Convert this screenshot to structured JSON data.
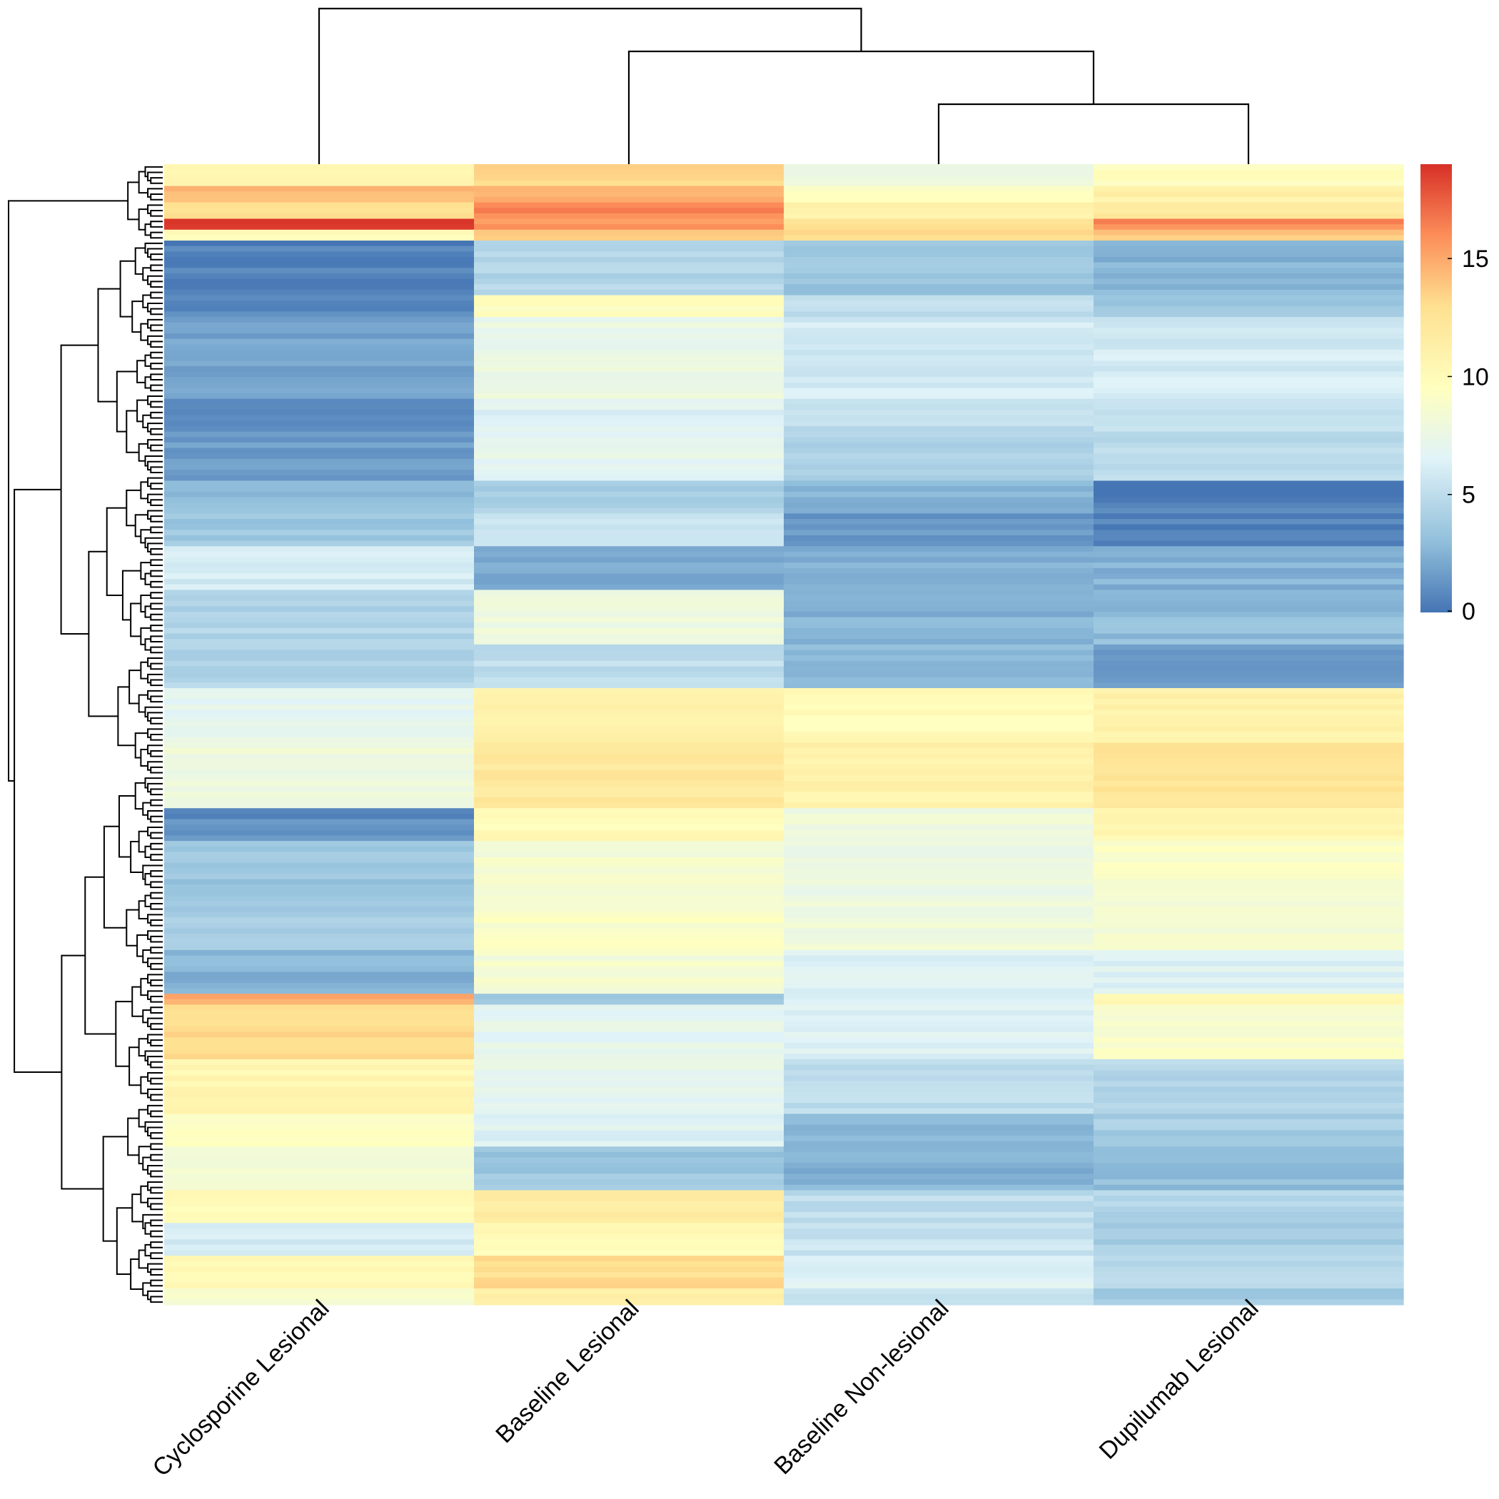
{
  "chart_data": {
    "type": "heatmap",
    "columns": [
      "Cyclosporine Lesional",
      "Baseline Lesional",
      "Baseline Non-lesional",
      "Dupilumab Lesional"
    ],
    "column_order_note": "columns shown in dendrogram order",
    "value_range": [
      0,
      19
    ],
    "color_scale": {
      "stops": [
        {
          "value": 0,
          "color": "#4575b4"
        },
        {
          "value": 3,
          "color": "#91bfdb"
        },
        {
          "value": 6.5,
          "color": "#e0f3f8"
        },
        {
          "value": 9.5,
          "color": "#ffffbf"
        },
        {
          "value": 13,
          "color": "#fee090"
        },
        {
          "value": 16,
          "color": "#fc8d59"
        },
        {
          "value": 19,
          "color": "#d73027"
        }
      ]
    },
    "legend": {
      "position": "right",
      "ticks": [
        {
          "value": 0,
          "label": "0"
        },
        {
          "value": 5,
          "label": "5"
        },
        {
          "value": 10,
          "label": "10"
        },
        {
          "value": 15,
          "label": "15"
        }
      ]
    },
    "row_blocks": [
      {
        "rows": 4,
        "values": [
          10.5,
          13.5,
          8.0,
          9.5
        ]
      },
      {
        "rows": 3,
        "values": [
          14.5,
          15.0,
          9.0,
          11.0
        ]
      },
      {
        "rows": 3,
        "values": [
          13.0,
          16.0,
          11.0,
          12.0
        ]
      },
      {
        "rows": 2,
        "values": [
          19.0,
          15.5,
          13.0,
          16.0
        ]
      },
      {
        "rows": 2,
        "values": [
          10.0,
          14.0,
          13.0,
          14.0
        ]
      },
      {
        "rows": 10,
        "values": [
          0.5,
          4.5,
          3.5,
          2.5
        ]
      },
      {
        "rows": 4,
        "values": [
          1.0,
          9.5,
          5.0,
          3.5
        ]
      },
      {
        "rows": 15,
        "values": [
          2.0,
          7.5,
          6.0,
          6.0
        ]
      },
      {
        "rows": 5,
        "values": [
          0.8,
          6.5,
          5.0,
          5.0
        ]
      },
      {
        "rows": 10,
        "values": [
          1.5,
          7.0,
          4.5,
          5.0
        ]
      },
      {
        "rows": 6,
        "values": [
          3.0,
          4.0,
          2.5,
          0.5
        ]
      },
      {
        "rows": 6,
        "values": [
          3.5,
          5.5,
          1.5,
          0.5
        ]
      },
      {
        "rows": 8,
        "values": [
          6.0,
          2.0,
          2.5,
          2.5
        ]
      },
      {
        "rows": 10,
        "values": [
          4.5,
          8.0,
          2.5,
          3.0
        ]
      },
      {
        "rows": 8,
        "values": [
          4.5,
          5.0,
          3.0,
          1.5
        ]
      },
      {
        "rows": 10,
        "values": [
          7.0,
          11.0,
          10.0,
          11.0
        ]
      },
      {
        "rows": 12,
        "values": [
          8.0,
          12.0,
          11.0,
          12.5
        ]
      },
      {
        "rows": 6,
        "values": [
          1.0,
          10.0,
          8.0,
          10.5
        ]
      },
      {
        "rows": 10,
        "values": [
          3.5,
          8.5,
          7.5,
          9.0
        ]
      },
      {
        "rows": 10,
        "values": [
          4.0,
          9.0,
          8.0,
          8.5
        ]
      },
      {
        "rows": 8,
        "values": [
          2.5,
          8.5,
          6.5,
          6.5
        ]
      },
      {
        "rows": 2,
        "values": [
          15.0,
          4.0,
          6.5,
          10.0
        ]
      },
      {
        "rows": 10,
        "values": [
          13.0,
          7.0,
          6.5,
          9.0
        ]
      },
      {
        "rows": 10,
        "values": [
          10.5,
          7.0,
          5.0,
          4.5
        ]
      },
      {
        "rows": 6,
        "values": [
          9.0,
          6.5,
          3.0,
          4.0
        ]
      },
      {
        "rows": 8,
        "values": [
          8.5,
          3.5,
          2.5,
          3.0
        ]
      },
      {
        "rows": 6,
        "values": [
          10.0,
          11.5,
          5.0,
          4.5
        ]
      },
      {
        "rows": 6,
        "values": [
          6.0,
          10.0,
          5.5,
          4.0
        ]
      },
      {
        "rows": 6,
        "values": [
          10.0,
          13.0,
          6.5,
          4.5
        ]
      },
      {
        "rows": 3,
        "values": [
          9.0,
          11.0,
          5.0,
          4.0
        ]
      }
    ]
  }
}
